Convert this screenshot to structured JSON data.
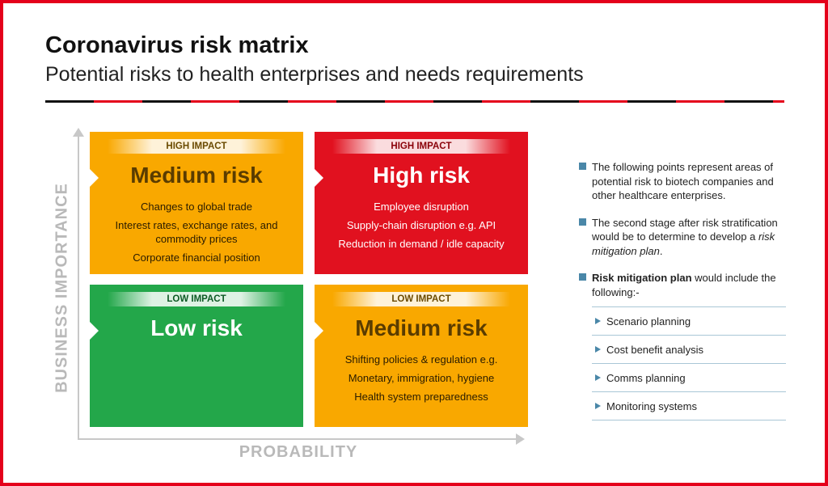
{
  "title": "Coronavirus risk matrix",
  "subtitle": "Potential risks to health enterprises and needs requirements",
  "axes": {
    "y_label": "BUSINESS IMPORTANCE",
    "x_label": "PROBABILITY"
  },
  "colors": {
    "frame": "#e4001b",
    "orange": "#f9a800",
    "red": "#e1111f",
    "green": "#23a74a",
    "accent": "#4a87a8"
  },
  "quadrants": {
    "top_left": {
      "impact": "HIGH IMPACT",
      "title": "Medium risk",
      "items": [
        "Changes to global trade",
        "Interest rates, exchange rates, and commodity prices",
        "Corporate financial position"
      ]
    },
    "top_right": {
      "impact": "HIGH IMPACT",
      "title": "High risk",
      "items": [
        "Employee disruption",
        "Supply-chain disruption e.g. API",
        "Reduction in demand / idle capacity"
      ]
    },
    "bottom_left": {
      "impact": "LOW IMPACT",
      "title": "Low risk",
      "items": []
    },
    "bottom_right": {
      "impact": "LOW IMPACT",
      "title": "Medium risk",
      "items": [
        "Shifting policies & regulation e.g.",
        "Monetary, immigration, hygiene",
        "Health system preparedness"
      ]
    }
  },
  "panel": {
    "point1": "The following points represent areas of potential risk to biotech companies and other healthcare enterprises.",
    "point2_text": "The second stage after risk stratification would be to determine to develop a ",
    "point2_italic": "risk mitigation plan",
    "point2_end": ".",
    "point3_bold": "Risk mitigation plan",
    "point3_text": " would include the following:-",
    "steps": [
      "Scenario planning",
      "Cost benefit analysis",
      "Comms planning",
      "Monitoring systems"
    ]
  }
}
